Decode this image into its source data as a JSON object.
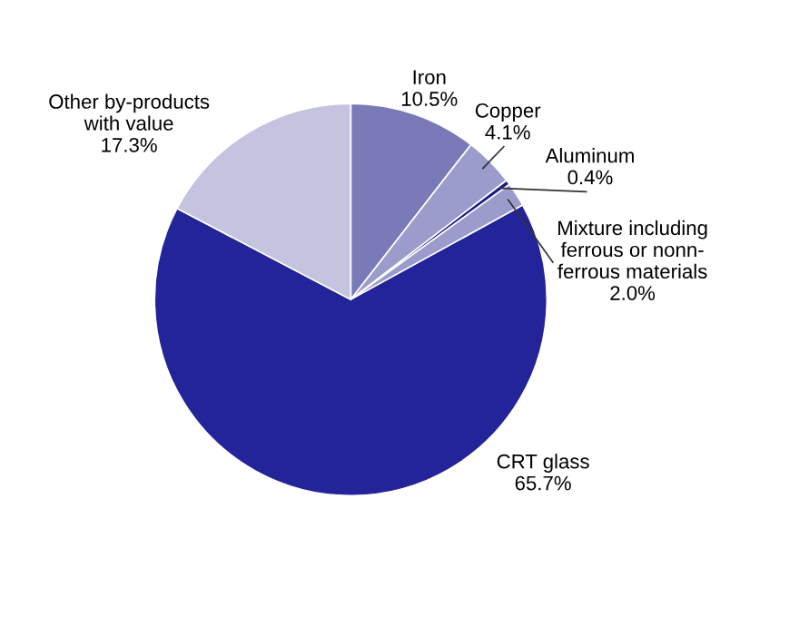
{
  "chart_data": {
    "type": "pie",
    "categories": [
      "Iron",
      "Copper",
      "Aluminum",
      "Mixture including\nferrous or nonn-\nferrous materials",
      "CRT glass",
      "Other by-products\nwith value"
    ],
    "values": [
      10.5,
      4.1,
      0.4,
      2.0,
      65.7,
      17.3
    ],
    "value_labels": [
      "10.5%",
      "4.1%",
      "0.4%",
      "2.0%",
      "65.7%",
      "17.3%"
    ],
    "colors": [
      "#7a7ab8",
      "#9c9ccc",
      "#1c1c8a",
      "#9c9ccc",
      "#23239a",
      "#c4c4e0"
    ]
  }
}
